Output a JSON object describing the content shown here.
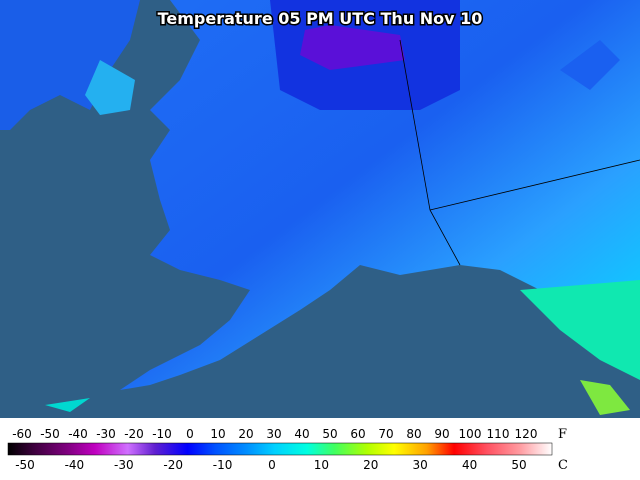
{
  "title": "Temperature 05 PM UTC Thu Nov 10",
  "legend": {
    "fahrenheit": {
      "unit": "F",
      "labels": [
        -60,
        -50,
        -40,
        -30,
        -20,
        -10,
        0,
        10,
        20,
        30,
        40,
        50,
        60,
        70,
        80,
        90,
        100,
        110,
        120
      ]
    },
    "celsius": {
      "unit": "C",
      "labels": [
        -50,
        -40,
        -30,
        -20,
        -10,
        0,
        10,
        20,
        30,
        40,
        50
      ]
    }
  }
}
